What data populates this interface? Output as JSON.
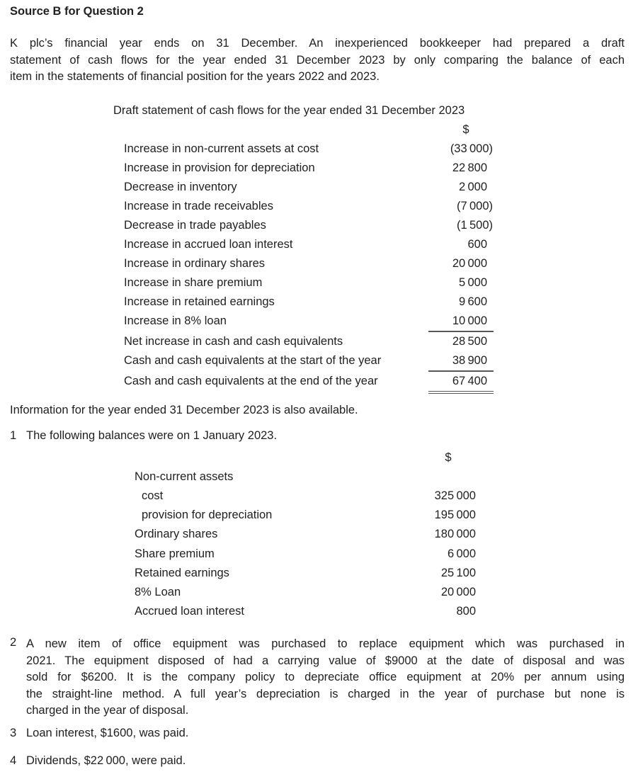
{
  "heading": "Source B for Question 2",
  "intro": {
    "lines": [
      "K plc’s financial year ends on 31 December. An inexperienced bookkeeper had prepared a draft",
      "statement of cash flows for the year ended 31 December 2023 by only comparing the balance of each",
      "item in the statements of financial position for the years 2022 and 2023."
    ]
  },
  "draft_statement": {
    "title": "Draft statement of cash flows for the year ended 31 December 2023",
    "currency_header": "$",
    "rows": [
      {
        "label": "Increase in non-current assets at cost",
        "value": "(33 000)"
      },
      {
        "label": "Increase in provision for depreciation",
        "value": "22 800"
      },
      {
        "label": "Decrease in inventory",
        "value": "2 000"
      },
      {
        "label": "Increase in trade receivables",
        "value": "(7 000)"
      },
      {
        "label": "Decrease in trade payables",
        "value": "(1 500)"
      },
      {
        "label": "Increase in accrued loan interest",
        "value": "600"
      },
      {
        "label": "Increase in ordinary shares",
        "value": "20 000"
      },
      {
        "label": "Increase in share premium",
        "value": "5 000"
      },
      {
        "label": "Increase in retained earnings",
        "value": "9 600"
      },
      {
        "label": "Increase in 8% loan",
        "value": "10 000"
      },
      {
        "label": "Net increase in cash and cash equivalents",
        "value": "28 500"
      },
      {
        "label": "Cash and cash equivalents at the start of the year",
        "value": "38 900"
      },
      {
        "label": "Cash and cash equivalents at the end of the year",
        "value": "67 400"
      }
    ]
  },
  "info_line": "Information for the year ended 31 December 2023 is also available.",
  "note1": {
    "number": "1",
    "text": "The following balances were on 1 January 2023."
  },
  "balances": {
    "currency_header": "$",
    "rows": [
      {
        "label": "Non-current assets",
        "value": ""
      },
      {
        "label": "cost",
        "value": "325 000"
      },
      {
        "label": "provision for depreciation",
        "value": "195 000"
      },
      {
        "label": "Ordinary shares",
        "value": "180 000"
      },
      {
        "label": "Share premium",
        "value": "6 000"
      },
      {
        "label": "Retained earnings",
        "value": "25 100"
      },
      {
        "label": "8% Loan",
        "value": "20 000"
      },
      {
        "label": "Accrued loan interest",
        "value": "800"
      }
    ]
  },
  "note2": {
    "number": "2",
    "lines": [
      "A new item of office equipment was purchased to replace equipment which was purchased in",
      "2021. The equipment disposed of had a carrying value of $9000 at the date of disposal and was",
      "sold for $6200. It is the company policy to depreciate office equipment at 20% per annum using",
      "the straight-line method. A full year’s depreciation is charged in the year of purchase but none is",
      "charged in the year of disposal."
    ]
  },
  "note3": {
    "number": "3",
    "text": "Loan interest, $1600, was paid."
  },
  "note4": {
    "number": "4",
    "text": "Dividends, $22 000, were paid."
  }
}
